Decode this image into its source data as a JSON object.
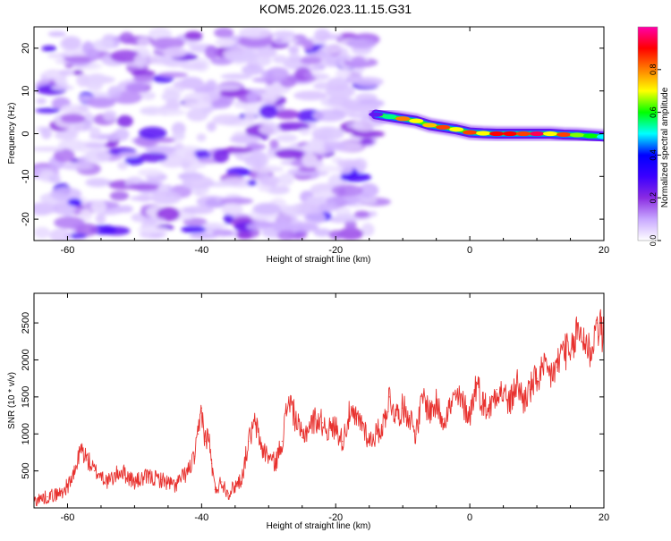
{
  "title": "KOM5.2026.023.11.15.G31",
  "chart_data": [
    {
      "type": "heatmap",
      "title": "KOM5.2026.023.11.15.G31",
      "xlabel": "Height of straight line (km)",
      "ylabel": "Frequency (Hz)",
      "xlim": [
        -65,
        20
      ],
      "ylim": [
        -25,
        25
      ],
      "x_ticks": [
        -60,
        -40,
        -20,
        0,
        20
      ],
      "y_ticks": [
        -20,
        -10,
        0,
        10,
        20
      ],
      "colorbar": {
        "label": "Normalized spectral amplitude",
        "range": [
          0,
          1
        ],
        "ticks": [
          0.0,
          0.2,
          0.4,
          0.6,
          0.8
        ],
        "colors": [
          "#ffffff",
          "#c8a8ff",
          "#8a2be2",
          "#3b00ff",
          "#0000ff",
          "#00ffff",
          "#00ff00",
          "#ffff00",
          "#ff8000",
          "#ff0000",
          "#ff00aa"
        ]
      },
      "noise_region": {
        "x": [
          -64,
          -14
        ],
        "y": [
          -24,
          24
        ],
        "amplitude_range": [
          0.0,
          0.3
        ]
      },
      "signal_ridge": [
        {
          "x": -14,
          "freq": 4.5,
          "amp": 0.25
        },
        {
          "x": -12,
          "freq": 4.0,
          "amp": 0.55
        },
        {
          "x": -10,
          "freq": 3.5,
          "amp": 0.8
        },
        {
          "x": -8,
          "freq": 3.0,
          "amp": 0.7
        },
        {
          "x": -6,
          "freq": 2.0,
          "amp": 0.75
        },
        {
          "x": -4,
          "freq": 1.5,
          "amp": 0.85
        },
        {
          "x": -2,
          "freq": 1.0,
          "amp": 0.7
        },
        {
          "x": 0,
          "freq": 0.3,
          "amp": 0.85
        },
        {
          "x": 2,
          "freq": 0.1,
          "amp": 0.7
        },
        {
          "x": 4,
          "freq": 0.0,
          "amp": 0.9
        },
        {
          "x": 6,
          "freq": 0.0,
          "amp": 0.9
        },
        {
          "x": 8,
          "freq": 0.0,
          "amp": 0.85
        },
        {
          "x": 10,
          "freq": 0.0,
          "amp": 0.95
        },
        {
          "x": 12,
          "freq": 0.0,
          "amp": 0.7
        },
        {
          "x": 14,
          "freq": -0.2,
          "amp": 0.85
        },
        {
          "x": 16,
          "freq": -0.3,
          "amp": 0.65
        },
        {
          "x": 18,
          "freq": -0.5,
          "amp": 0.6
        },
        {
          "x": 20,
          "freq": -0.7,
          "amp": 0.5
        }
      ]
    },
    {
      "type": "line",
      "xlabel": "Height of straight line (km)",
      "ylabel": "SNR (10 * v/v)",
      "xlim": [
        -65,
        20
      ],
      "ylim": [
        0,
        2900
      ],
      "x_ticks": [
        -60,
        -40,
        -20,
        0,
        20
      ],
      "y_ticks": [
        500,
        1000,
        1500,
        2000,
        2500
      ],
      "color": "#e8312e",
      "series": [
        {
          "name": "SNR",
          "x": [
            -65,
            -63,
            -61,
            -60,
            -59,
            -58,
            -57,
            -56,
            -55,
            -54,
            -52,
            -50,
            -48,
            -46,
            -44,
            -42,
            -41,
            -40.5,
            -40,
            -39.5,
            -39,
            -38.5,
            -38,
            -37,
            -36,
            -35,
            -34,
            -33,
            -32,
            -31,
            -30,
            -29,
            -28,
            -27,
            -26,
            -25,
            -24,
            -23,
            -22,
            -21,
            -20,
            -19,
            -18,
            -17,
            -16,
            -15,
            -14,
            -13,
            -12,
            -11,
            -10,
            -9,
            -8,
            -7,
            -6,
            -5,
            -4,
            -3,
            -2,
            -1,
            0,
            1,
            2,
            3,
            4,
            5,
            6,
            7,
            8,
            9,
            10,
            11,
            12,
            13,
            14,
            15,
            16,
            17,
            18,
            19,
            20
          ],
          "y": [
            100,
            150,
            200,
            300,
            450,
            800,
            650,
            500,
            450,
            350,
            500,
            350,
            420,
            380,
            300,
            500,
            700,
            1000,
            1350,
            900,
            1000,
            600,
            250,
            350,
            200,
            300,
            400,
            900,
            1150,
            800,
            700,
            600,
            900,
            1500,
            1200,
            950,
            1100,
            1200,
            1150,
            1050,
            1100,
            900,
            1250,
            1200,
            1150,
            900,
            1000,
            1100,
            1500,
            1250,
            1350,
            1250,
            1000,
            1500,
            1300,
            1400,
            1200,
            1350,
            1500,
            1400,
            1250,
            1700,
            1400,
            1350,
            1600,
            1550,
            1400,
            1700,
            1450,
            1600,
            1750,
            1850,
            1800,
            1900,
            2200,
            2000,
            2400,
            2300,
            2100,
            2500,
            2300
          ]
        }
      ]
    }
  ]
}
